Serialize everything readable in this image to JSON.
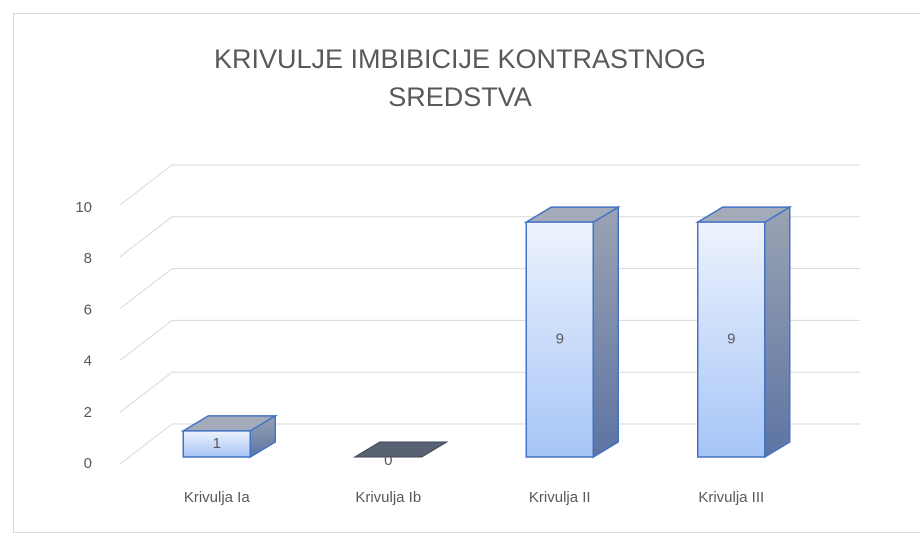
{
  "chart_data": {
    "type": "bar",
    "title": "KRIVULJE IMBIBICIJE KONTRASTNOG SREDSTVA",
    "categories": [
      "Krivulja Ia",
      "Krivulja Ib",
      "Krivulja II",
      "Krivulja III"
    ],
    "values": [
      1,
      0,
      9,
      9
    ],
    "color": "#4472c4",
    "ylim": [
      0,
      10
    ],
    "yticks": [
      0,
      2,
      4,
      6,
      8,
      10
    ],
    "grid": true
  }
}
